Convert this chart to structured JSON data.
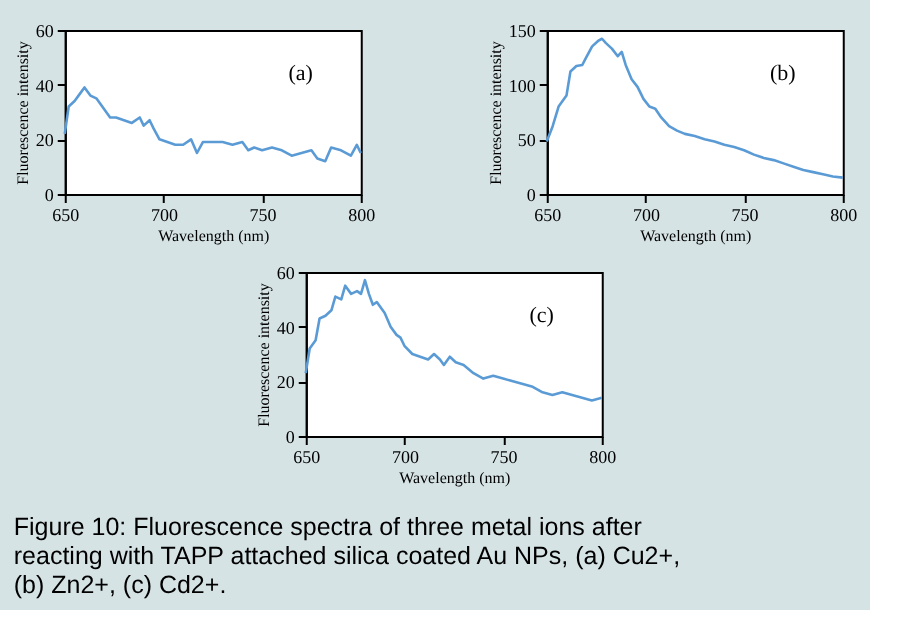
{
  "chart_data": [
    {
      "type": "line",
      "xlabel": "Wavelength (nm)",
      "ylabel": "Fluorescence intensity",
      "annotations": [
        "(a)"
      ],
      "xlim": [
        650,
        800
      ],
      "xticks": [
        650,
        700,
        750,
        800
      ],
      "ylim": [
        0,
        60
      ],
      "yticks": [
        0,
        20,
        40,
        60
      ],
      "grid": false,
      "legend": false,
      "marker": "none",
      "line_style": "solid",
      "series": [
        {
          "color": "#5b9bd5",
          "x": [
            650,
            652,
            655,
            658,
            660,
            663,
            666,
            670,
            673,
            676,
            680,
            684,
            688,
            690,
            693,
            695,
            698,
            702,
            706,
            710,
            714,
            717,
            720,
            725,
            730,
            735,
            740,
            743,
            746,
            750,
            755,
            760,
            765,
            770,
            775,
            778,
            782,
            785,
            790,
            795,
            798,
            800
          ],
          "values": [
            22,
            32,
            34,
            37,
            39,
            36,
            35,
            31,
            28,
            28,
            27,
            26,
            28,
            25,
            27,
            24,
            20,
            19,
            18,
            18,
            20,
            15,
            19,
            19,
            19,
            18,
            19,
            16,
            17,
            16,
            17,
            16,
            14,
            15,
            16,
            13,
            12,
            17,
            16,
            14,
            18,
            15
          ]
        }
      ]
    },
    {
      "type": "line",
      "xlabel": "Wavelength (nm)",
      "ylabel": "Fluorescence intensity",
      "annotations": [
        "(b)"
      ],
      "xlim": [
        650,
        800
      ],
      "xticks": [
        650,
        700,
        750,
        800
      ],
      "ylim": [
        0,
        150
      ],
      "yticks": [
        0,
        50,
        100,
        150
      ],
      "grid": false,
      "legend": false,
      "marker": "none",
      "line_style": "solid",
      "series": [
        {
          "color": "#5b9bd5",
          "x": [
            650,
            653,
            656,
            660,
            662,
            665,
            668,
            670,
            673,
            676,
            678,
            680,
            683,
            686,
            688,
            690,
            693,
            696,
            699,
            702,
            705,
            708,
            712,
            716,
            720,
            725,
            730,
            735,
            740,
            745,
            750,
            755,
            760,
            765,
            770,
            775,
            780,
            785,
            790,
            795,
            800
          ],
          "values": [
            48,
            62,
            80,
            90,
            112,
            117,
            118,
            125,
            135,
            140,
            142,
            138,
            133,
            126,
            130,
            118,
            105,
            98,
            87,
            80,
            78,
            70,
            62,
            58,
            55,
            53,
            50,
            48,
            45,
            43,
            40,
            36,
            33,
            31,
            28,
            25,
            22,
            20,
            18,
            16,
            15
          ]
        }
      ]
    },
    {
      "type": "line",
      "xlabel": "Wavelength (nm)",
      "ylabel": "Fluorescence intensity",
      "annotations": [
        "(c)",
        "Figure 10: Fluorescence spectra of three metal ions after reacting with TAPP attached silica coated Au NPs, (a) Cu2+, (b) Zn2+, (c) Cd2+."
      ],
      "xlim": [
        650,
        800
      ],
      "xticks": [
        650,
        700,
        750,
        800
      ],
      "ylim": [
        0,
        60
      ],
      "yticks": [
        0,
        20,
        40,
        60
      ],
      "grid": false,
      "legend": false,
      "marker": "none",
      "line_style": "solid",
      "series": [
        {
          "color": "#5b9bd5",
          "x": [
            650,
            652,
            655,
            657,
            660,
            663,
            665,
            668,
            670,
            673,
            676,
            678,
            680,
            682,
            684,
            686,
            688,
            690,
            693,
            696,
            698,
            700,
            704,
            708,
            712,
            715,
            718,
            720,
            723,
            726,
            730,
            735,
            740,
            745,
            750,
            755,
            760,
            765,
            770,
            775,
            780,
            785,
            790,
            795,
            800
          ],
          "values": [
            23,
            32,
            35,
            43,
            44,
            46,
            51,
            50,
            55,
            52,
            53,
            52,
            57,
            52,
            48,
            49,
            47,
            45,
            40,
            37,
            36,
            33,
            30,
            29,
            28,
            30,
            28,
            26,
            29,
            27,
            26,
            23,
            21,
            22,
            21,
            20,
            19,
            18,
            16,
            15,
            16,
            15,
            14,
            13,
            14
          ]
        }
      ]
    }
  ]
}
